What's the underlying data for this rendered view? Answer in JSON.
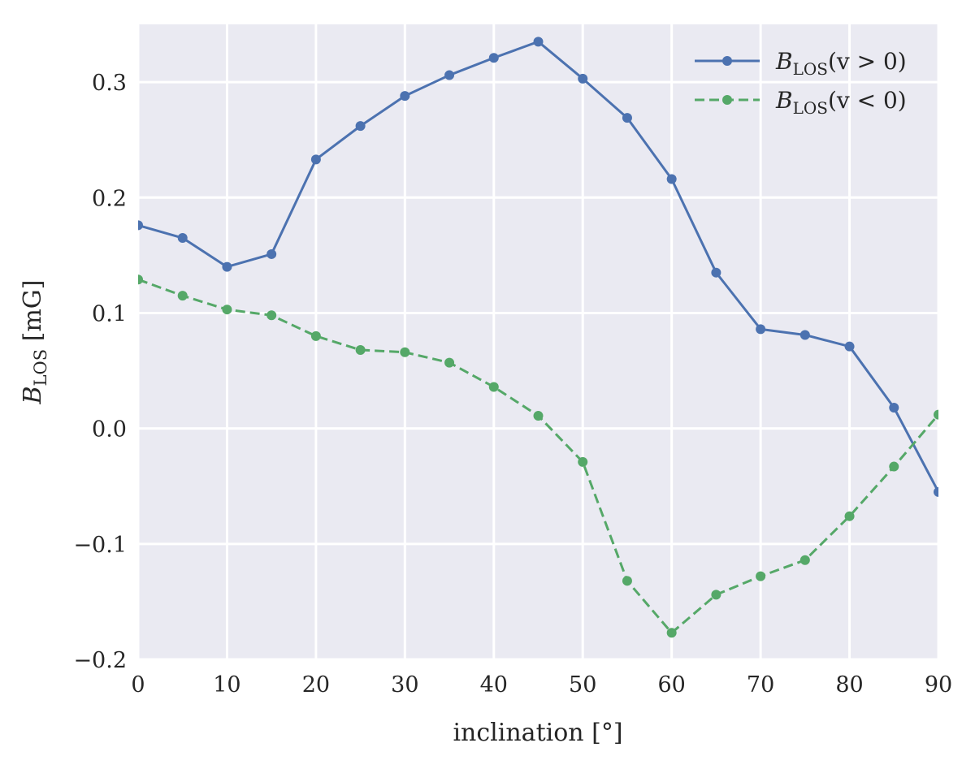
{
  "chart_data": {
    "type": "line",
    "xlabel": "inclination [°]",
    "ylabel": {
      "main": "B",
      "sub": "LOS",
      "rest": " [mG]"
    },
    "xlim": [
      0,
      90
    ],
    "ylim": [
      -0.2,
      0.35
    ],
    "x_ticks": [
      0,
      10,
      20,
      30,
      40,
      50,
      60,
      70,
      80,
      90
    ],
    "y_ticks": [
      -0.2,
      -0.1,
      0.0,
      0.1,
      0.2,
      0.3
    ],
    "x_tick_labels": [
      "0",
      "10",
      "20",
      "30",
      "40",
      "50",
      "60",
      "70",
      "80",
      "90"
    ],
    "y_tick_labels": [
      "−0.2",
      "−0.1",
      "0.0",
      "0.1",
      "0.2",
      "0.3"
    ],
    "grid": true,
    "legend_position": "top-right",
    "x": [
      0,
      5,
      10,
      15,
      20,
      25,
      30,
      35,
      40,
      45,
      50,
      55,
      60,
      65,
      70,
      75,
      80,
      85,
      90
    ],
    "series": [
      {
        "name": "B_LOS(v > 0)",
        "legend": {
          "main": "B",
          "sub": "LOS",
          "rest": "(v > 0)"
        },
        "color": "#4c72b0",
        "dash": "solid",
        "values": [
          0.176,
          0.165,
          0.14,
          0.151,
          0.233,
          0.262,
          0.288,
          0.306,
          0.321,
          0.335,
          0.303,
          0.269,
          0.216,
          0.135,
          0.086,
          0.081,
          0.071,
          0.018,
          -0.055
        ]
      },
      {
        "name": "B_LOS(v < 0)",
        "legend": {
          "main": "B",
          "sub": "LOS",
          "rest": "(v < 0)"
        },
        "color": "#55a868",
        "dash": "dashed",
        "values": [
          0.129,
          0.115,
          0.103,
          0.098,
          0.08,
          0.068,
          0.066,
          0.057,
          0.036,
          0.011,
          -0.029,
          -0.132,
          -0.177,
          -0.144,
          -0.128,
          -0.114,
          -0.076,
          -0.033,
          0.012
        ]
      }
    ]
  }
}
